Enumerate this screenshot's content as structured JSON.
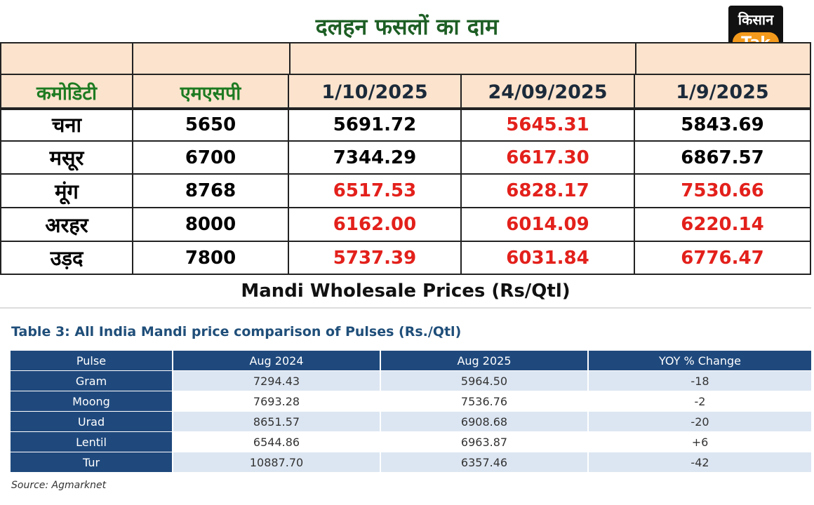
{
  "header": {
    "title": "दलहन फसलों का दाम",
    "logo": {
      "top": "किसान",
      "bottom": "Tak"
    }
  },
  "top_table": {
    "columns": [
      "कमोडिटी",
      "एमएसपी",
      "1/10/2025",
      "24/09/2025",
      "1/9/2025"
    ],
    "column_colors": [
      "#1e7b22",
      "#1e7b22",
      "#1b2a3a",
      "#1b2a3a",
      "#1b2a3a"
    ],
    "rows": [
      {
        "cells": [
          "चना",
          "5650",
          "5691.72",
          "5645.31",
          "5843.69"
        ],
        "colors": [
          "#000000",
          "#000000",
          "#000000",
          "#e3201b",
          "#000000"
        ]
      },
      {
        "cells": [
          "मसूर",
          "6700",
          "7344.29",
          "6617.30",
          "6867.57"
        ],
        "colors": [
          "#000000",
          "#000000",
          "#000000",
          "#e3201b",
          "#000000"
        ]
      },
      {
        "cells": [
          "मूंग",
          "8768",
          "6517.53",
          "6828.17",
          "7530.66"
        ],
        "colors": [
          "#000000",
          "#000000",
          "#e3201b",
          "#e3201b",
          "#e3201b"
        ]
      },
      {
        "cells": [
          "अरहर",
          "8000",
          "6162.00",
          "6014.09",
          "6220.14"
        ],
        "colors": [
          "#000000",
          "#000000",
          "#e3201b",
          "#e3201b",
          "#e3201b"
        ]
      },
      {
        "cells": [
          "उड़द",
          "7800",
          "5737.39",
          "6031.84",
          "6776.47"
        ],
        "colors": [
          "#000000",
          "#000000",
          "#e3201b",
          "#e3201b",
          "#e3201b"
        ]
      }
    ],
    "caption": "Mandi Wholesale Prices (Rs/Qtl)"
  },
  "bottom_table": {
    "title": "Table 3: All India Mandi price comparison of Pulses (Rs./Qtl)",
    "columns": [
      "Pulse",
      "Aug 2024",
      "Aug 2025",
      "YOY % Change"
    ],
    "rows": [
      [
        "Gram",
        "7294.43",
        "5964.50",
        "-18"
      ],
      [
        "Moong",
        "7693.28",
        "7536.76",
        "-2"
      ],
      [
        "Urad",
        "8651.57",
        "6908.68",
        "-20"
      ],
      [
        "Lentil",
        "6544.86",
        "6963.87",
        "+6"
      ],
      [
        "Tur",
        "10887.70",
        "6357.46",
        "-42"
      ]
    ],
    "source": "Source: Agmarknet"
  }
}
